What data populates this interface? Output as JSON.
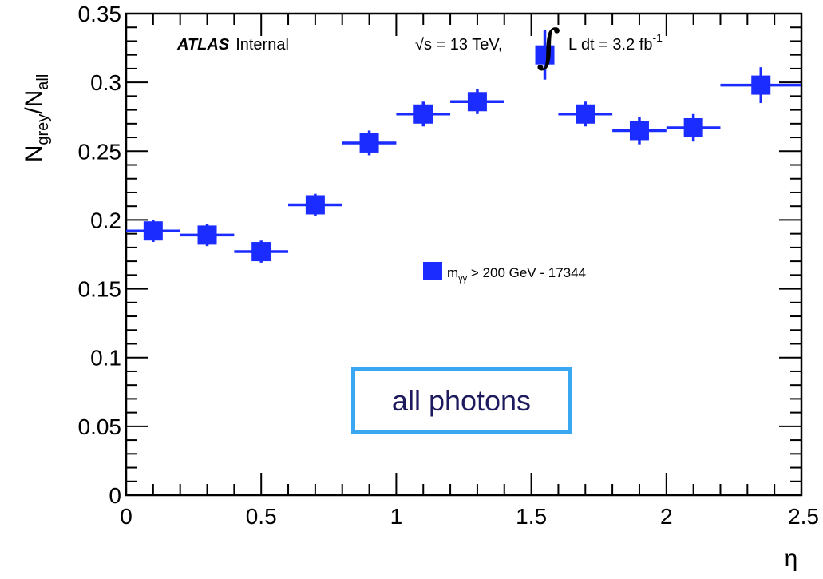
{
  "chart_data": {
    "type": "scatter",
    "xlabel": "η",
    "ylabel": {
      "base1": "N",
      "sub1": "grey",
      "slash": "/",
      "base2": "N",
      "sub2": "all"
    },
    "xlim": [
      0,
      2.5
    ],
    "ylim": [
      0,
      0.35
    ],
    "x_ticks": [
      "0",
      "0.5",
      "1",
      "1.5",
      "2",
      "2.5"
    ],
    "y_ticks": [
      "0",
      "0.05",
      "0.1",
      "0.15",
      "0.2",
      "0.25",
      "0.3",
      "0.35"
    ],
    "grid": false,
    "legend_position": "center-right",
    "series": [
      {
        "name": "m_γγ > 200 GeV - 17344",
        "color": "#1a2cff",
        "points": [
          {
            "x": 0.1,
            "xlo": 0.0,
            "xhi": 0.2,
            "y": 0.192,
            "yerr": 0.008
          },
          {
            "x": 0.3,
            "xlo": 0.2,
            "xhi": 0.4,
            "y": 0.189,
            "yerr": 0.008
          },
          {
            "x": 0.5,
            "xlo": 0.4,
            "xhi": 0.6,
            "y": 0.177,
            "yerr": 0.008
          },
          {
            "x": 0.7,
            "xlo": 0.6,
            "xhi": 0.8,
            "y": 0.211,
            "yerr": 0.008
          },
          {
            "x": 0.9,
            "xlo": 0.8,
            "xhi": 1.0,
            "y": 0.256,
            "yerr": 0.009
          },
          {
            "x": 1.1,
            "xlo": 1.0,
            "xhi": 1.2,
            "y": 0.277,
            "yerr": 0.009
          },
          {
            "x": 1.3,
            "xlo": 1.2,
            "xhi": 1.4,
            "y": 0.286,
            "yerr": 0.009
          },
          {
            "x": 1.55,
            "xlo": 1.52,
            "xhi": 1.58,
            "y": 0.32,
            "yerr": 0.018
          },
          {
            "x": 1.7,
            "xlo": 1.6,
            "xhi": 1.8,
            "y": 0.277,
            "yerr": 0.009
          },
          {
            "x": 1.9,
            "xlo": 1.8,
            "xhi": 2.0,
            "y": 0.265,
            "yerr": 0.01
          },
          {
            "x": 2.1,
            "xlo": 2.0,
            "xhi": 2.2,
            "y": 0.267,
            "yerr": 0.01
          },
          {
            "x": 2.35,
            "xlo": 2.2,
            "xhi": 2.5,
            "y": 0.298,
            "yerr": 0.013
          }
        ]
      }
    ],
    "annotations": {
      "experiment": "ATLAS",
      "status": "Internal",
      "energy": "√s = 13 TeV,",
      "lumi_int": "∫",
      "lumi_text": "L dt = 3.2 fb",
      "lumi_exp": "-1",
      "legend_label_base": "m",
      "legend_label_sub": "γγ",
      "legend_label_rest": " > 200 GeV - 17344"
    },
    "callout": "all photons"
  }
}
